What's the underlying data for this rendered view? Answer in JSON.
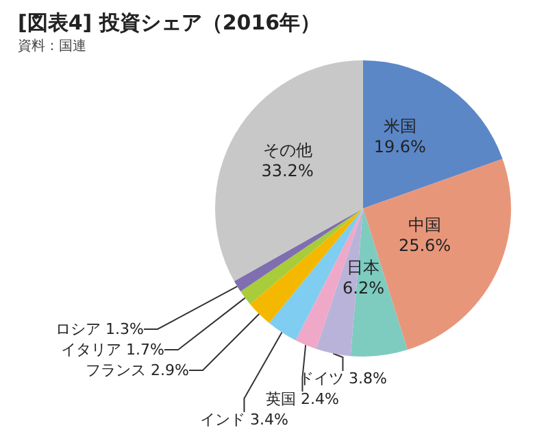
{
  "chart_data": {
    "type": "pie",
    "title": "[図表4] 投資シェア（2016年）",
    "annotations": [
      "資料：国連"
    ],
    "categories": [
      "米国",
      "中国",
      "日本",
      "ドイツ",
      "英国",
      "インド",
      "フランス",
      "イタリア",
      "ロシア",
      "その他"
    ],
    "values": [
      19.6,
      25.6,
      6.2,
      3.8,
      2.4,
      3.4,
      2.9,
      1.7,
      1.3,
      33.2
    ],
    "value_labels": [
      "19.6%",
      "25.6%",
      "6.2%",
      "3.8%",
      "2.4%",
      "3.4%",
      "2.9%",
      "1.7%",
      "1.3%",
      "33.2%"
    ],
    "colors": [
      "#5b87c7",
      "#e8967a",
      "#7ecbc0",
      "#b9b3d9",
      "#f0a8c8",
      "#7fcdf0",
      "#f5b800",
      "#a8cc3a",
      "#7f6fb0",
      "#c8c8c8"
    ],
    "data_labels": true,
    "legend": false
  }
}
